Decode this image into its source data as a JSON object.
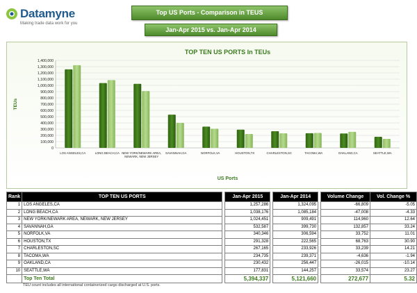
{
  "logo": {
    "name": "Datamyne",
    "tagline": "Making trade data work for you"
  },
  "header": {
    "title": "Top US Ports - Comparison in TEUS",
    "subtitle": "Jan-Apr 2015 vs. Jan-Apr 2014"
  },
  "chart_data": {
    "type": "bar",
    "title": "TOP TEN US PORTS In TEUs",
    "xlabel": "US Ports",
    "ylabel": "TEUs",
    "ylim": [
      0,
      1400000
    ],
    "yticks": [
      "0",
      "100,000",
      "200,000",
      "300,000",
      "400,000",
      "500,000",
      "600,000",
      "700,000",
      "800,000",
      "900,000",
      "1,000,000",
      "1,100,000",
      "1,200,000",
      "1,300,000",
      "1,400,000"
    ],
    "categories": [
      "LOS ANGELES,CA",
      "LONG BEACH,CA",
      "NEW YORK/NEWARK AREA, NEWARK, NEW JERSEY",
      "SAVANNAH,GA",
      "NORFOLK,VA",
      "HOUSTON,TX",
      "CHARLESTON,SC",
      "TACOMA,WA",
      "OAKLAND,CA",
      "SEATTLE,WA"
    ],
    "series": [
      {
        "values": [
          1257286,
          1038176,
          1024451,
          532587,
          340346,
          291328,
          267165,
          234735,
          230432,
          177831
        ],
        "color": "#4c8a22"
      },
      {
        "values": [
          1324095,
          1085184,
          909491,
          399730,
          306594,
          222565,
          233926,
          239371,
          256447,
          144257
        ],
        "color": "#b6d98d"
      }
    ],
    "grid": true,
    "legend": "none"
  },
  "table": {
    "headers": [
      "Rank",
      "TOP TEN US PORTS",
      "Jan-Apr 2015",
      "Jan-Apr 2014",
      "Volume Change",
      "Vol. Change %"
    ],
    "rows": [
      [
        "1",
        "LOS ANGELES,CA",
        "1,257,286",
        "1,324,095",
        "-66,809",
        "-5.05"
      ],
      [
        "2",
        "LONG BEACH,CA",
        "1,038,176",
        "1,085,184",
        "-47,008",
        "-4.33"
      ],
      [
        "3",
        "NEW YORK/NEWARK AREA, NEWARK, NEW JERSEY",
        "1,024,451",
        "909,491",
        "114,960",
        "12.64"
      ],
      [
        "4",
        "SAVANNAH,GA",
        "532,587",
        "399,730",
        "132,857",
        "33.24"
      ],
      [
        "5",
        "NORFOLK,VA",
        "340,346",
        "306,594",
        "33,752",
        "11.01"
      ],
      [
        "6",
        "HOUSTON,TX",
        "291,328",
        "222,565",
        "68,763",
        "30.90"
      ],
      [
        "7",
        "CHARLESTON,SC",
        "267,165",
        "233,926",
        "33,239",
        "14.21"
      ],
      [
        "8",
        "TACOMA,WA",
        "234,735",
        "239,371",
        "-4,636",
        "-1.94"
      ],
      [
        "9",
        "OAKLAND,CA",
        "230,432",
        "256,447",
        "-26,015",
        "-10.14"
      ],
      [
        "10",
        "SEATTLE,WA",
        "177,831",
        "144,257",
        "33,574",
        "23.27"
      ]
    ],
    "total": {
      "label": "Top Ten Total",
      "y2015": "5,394,337",
      "y2014": "5,121,660",
      "change": "272,677",
      "pct": "5.32"
    }
  },
  "footnote": "TEU count includes all international containerized cargo discharged at U.S. ports."
}
